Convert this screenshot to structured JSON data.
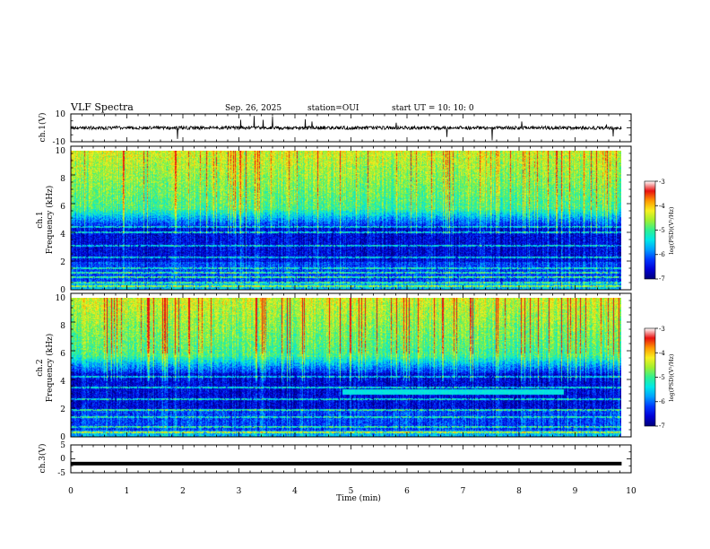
{
  "header": {
    "title": "VLF Spectra",
    "date": "Sep. 26, 2025",
    "station": "station=OUI",
    "start_ut": "start  UT =   10: 10: 0"
  },
  "chart_data": [
    {
      "type": "line",
      "panel": "ch1-waveform",
      "ylabel": "ch.1(V)",
      "ylim": [
        -10,
        10
      ],
      "yticks": [
        "10",
        "-10"
      ],
      "baseline_value": 0,
      "noise_amplitude": 1.2,
      "grid": false
    },
    {
      "type": "heatmap",
      "panel": "ch1-spectrogram",
      "ylabel_line1": "ch.1",
      "ylabel_line2": "Frequency (kHz)",
      "ylim": [
        0,
        10
      ],
      "yticks": [
        "0",
        "2",
        "4",
        "6",
        "8",
        "10"
      ],
      "colorbar": {
        "label": "log(PSD)(V²/Hz)",
        "range": [
          -7,
          -3
        ],
        "ticks": [
          "-3",
          "-4",
          "-5",
          "-6",
          "-7"
        ]
      },
      "narrowband_lines_khz": [
        0.3,
        0.6,
        1.0,
        1.3,
        1.6,
        2.4,
        3.2,
        4.2,
        4.6
      ],
      "grid": false
    },
    {
      "type": "heatmap",
      "panel": "ch2-spectrogram",
      "ylabel_line1": "ch.2",
      "ylabel_line2": "Frequency (kHz)",
      "ylim": [
        0,
        10
      ],
      "yticks": [
        "0",
        "2",
        "4",
        "6",
        "8",
        "10"
      ],
      "colorbar": {
        "label": "log(PSD)(V²/Hz)",
        "range": [
          -7,
          -3
        ],
        "ticks": [
          "-3",
          "-4",
          "-5",
          "-6",
          "-7"
        ]
      },
      "narrowband_lines_khz": [
        0.4,
        0.8,
        1.5,
        2.0,
        2.8,
        3.6,
        4.4
      ],
      "emission_band": {
        "t_start_min": 4.85,
        "t_end_min": 8.8,
        "f_low_khz": 3.05,
        "f_high_khz": 3.45
      },
      "grid": false
    },
    {
      "type": "line",
      "panel": "ch3-waveform",
      "ylabel": "ch.3(V)",
      "ylim": [
        -5,
        5
      ],
      "yticks": [
        "5",
        "0",
        "-5"
      ],
      "baseline_value": -1.7,
      "grid": false
    }
  ],
  "xaxis": {
    "label": "Time (min)",
    "xlim": [
      0,
      10
    ],
    "ticks": [
      "0",
      "1",
      "2",
      "3",
      "4",
      "5",
      "6",
      "7",
      "8",
      "9",
      "10"
    ],
    "data_end_min": 9.83
  },
  "colors": {
    "cmap": [
      "#00007a",
      "#0000d6",
      "#0038ff",
      "#00a0ff",
      "#00e8e8",
      "#30f090",
      "#a0f030",
      "#f8f020",
      "#ff9800",
      "#e81010",
      "#ffffff"
    ]
  }
}
